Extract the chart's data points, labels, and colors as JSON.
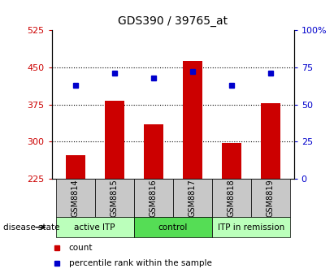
{
  "title": "GDS390 / 39765_at",
  "samples": [
    "GSM8814",
    "GSM8815",
    "GSM8816",
    "GSM8817",
    "GSM8818",
    "GSM8819"
  ],
  "counts": [
    272,
    383,
    335,
    462,
    297,
    378
  ],
  "percentiles": [
    63,
    71,
    68,
    72,
    63,
    71
  ],
  "ylim_left": [
    225,
    525
  ],
  "ylim_right": [
    0,
    100
  ],
  "yticks_left": [
    225,
    300,
    375,
    450,
    525
  ],
  "yticks_right": [
    0,
    25,
    50,
    75,
    100
  ],
  "ytick_labels_right": [
    "0",
    "25",
    "50",
    "75",
    "100%"
  ],
  "bar_color": "#cc0000",
  "point_color": "#0000cc",
  "groups": [
    {
      "label": "active ITP",
      "indices": [
        0,
        1
      ],
      "color": "#bbffbb"
    },
    {
      "label": "control",
      "indices": [
        2,
        3
      ],
      "color": "#55dd55"
    },
    {
      "label": "ITP in remission",
      "indices": [
        4,
        5
      ],
      "color": "#bbffbb"
    }
  ],
  "disease_state_label": "disease state",
  "legend_bar_label": "count",
  "legend_point_label": "percentile rank within the sample",
  "header_bg_color": "#c8c8c8",
  "title_fontsize": 10,
  "tick_fontsize": 8,
  "label_fontsize": 8
}
